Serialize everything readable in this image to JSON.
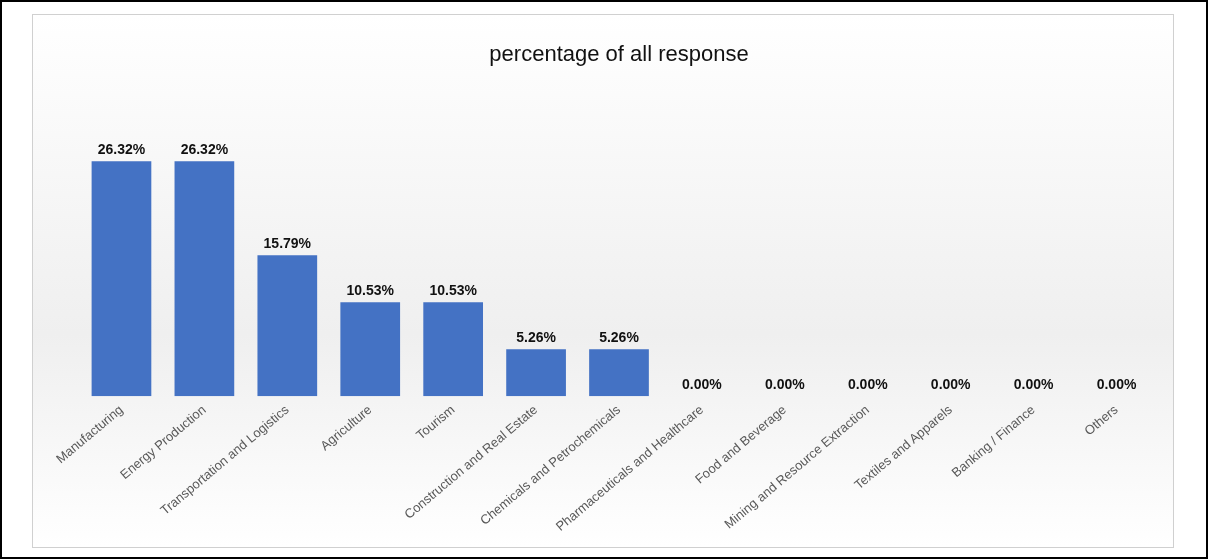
{
  "chart_data": {
    "type": "bar",
    "title": "percentage of all response",
    "categories": [
      "Manufacturing",
      "Energy Production",
      "Transportation and Logistics",
      "Agriculture",
      "Tourism",
      "Construction and Real Estate",
      "Chemicals and Petrochemicals",
      "Pharmaceuticals and Healthcare",
      "Food and Beverage",
      "Mining and Resource Extraction",
      "Textiles and Apparels",
      "Banking / Finance",
      "Others"
    ],
    "values": [
      26.32,
      26.32,
      15.79,
      10.53,
      10.53,
      5.26,
      5.26,
      0,
      0,
      0,
      0,
      0,
      0
    ],
    "value_labels": [
      "26.32%",
      "26.32%",
      "15.79%",
      "10.53%",
      "10.53%",
      "5.26%",
      "5.26%",
      "0.00%",
      "0.00%",
      "0.00%",
      "0.00%",
      "0.00%",
      "0.00%"
    ],
    "color": "#4472c4",
    "grid": false,
    "legend": false
  }
}
